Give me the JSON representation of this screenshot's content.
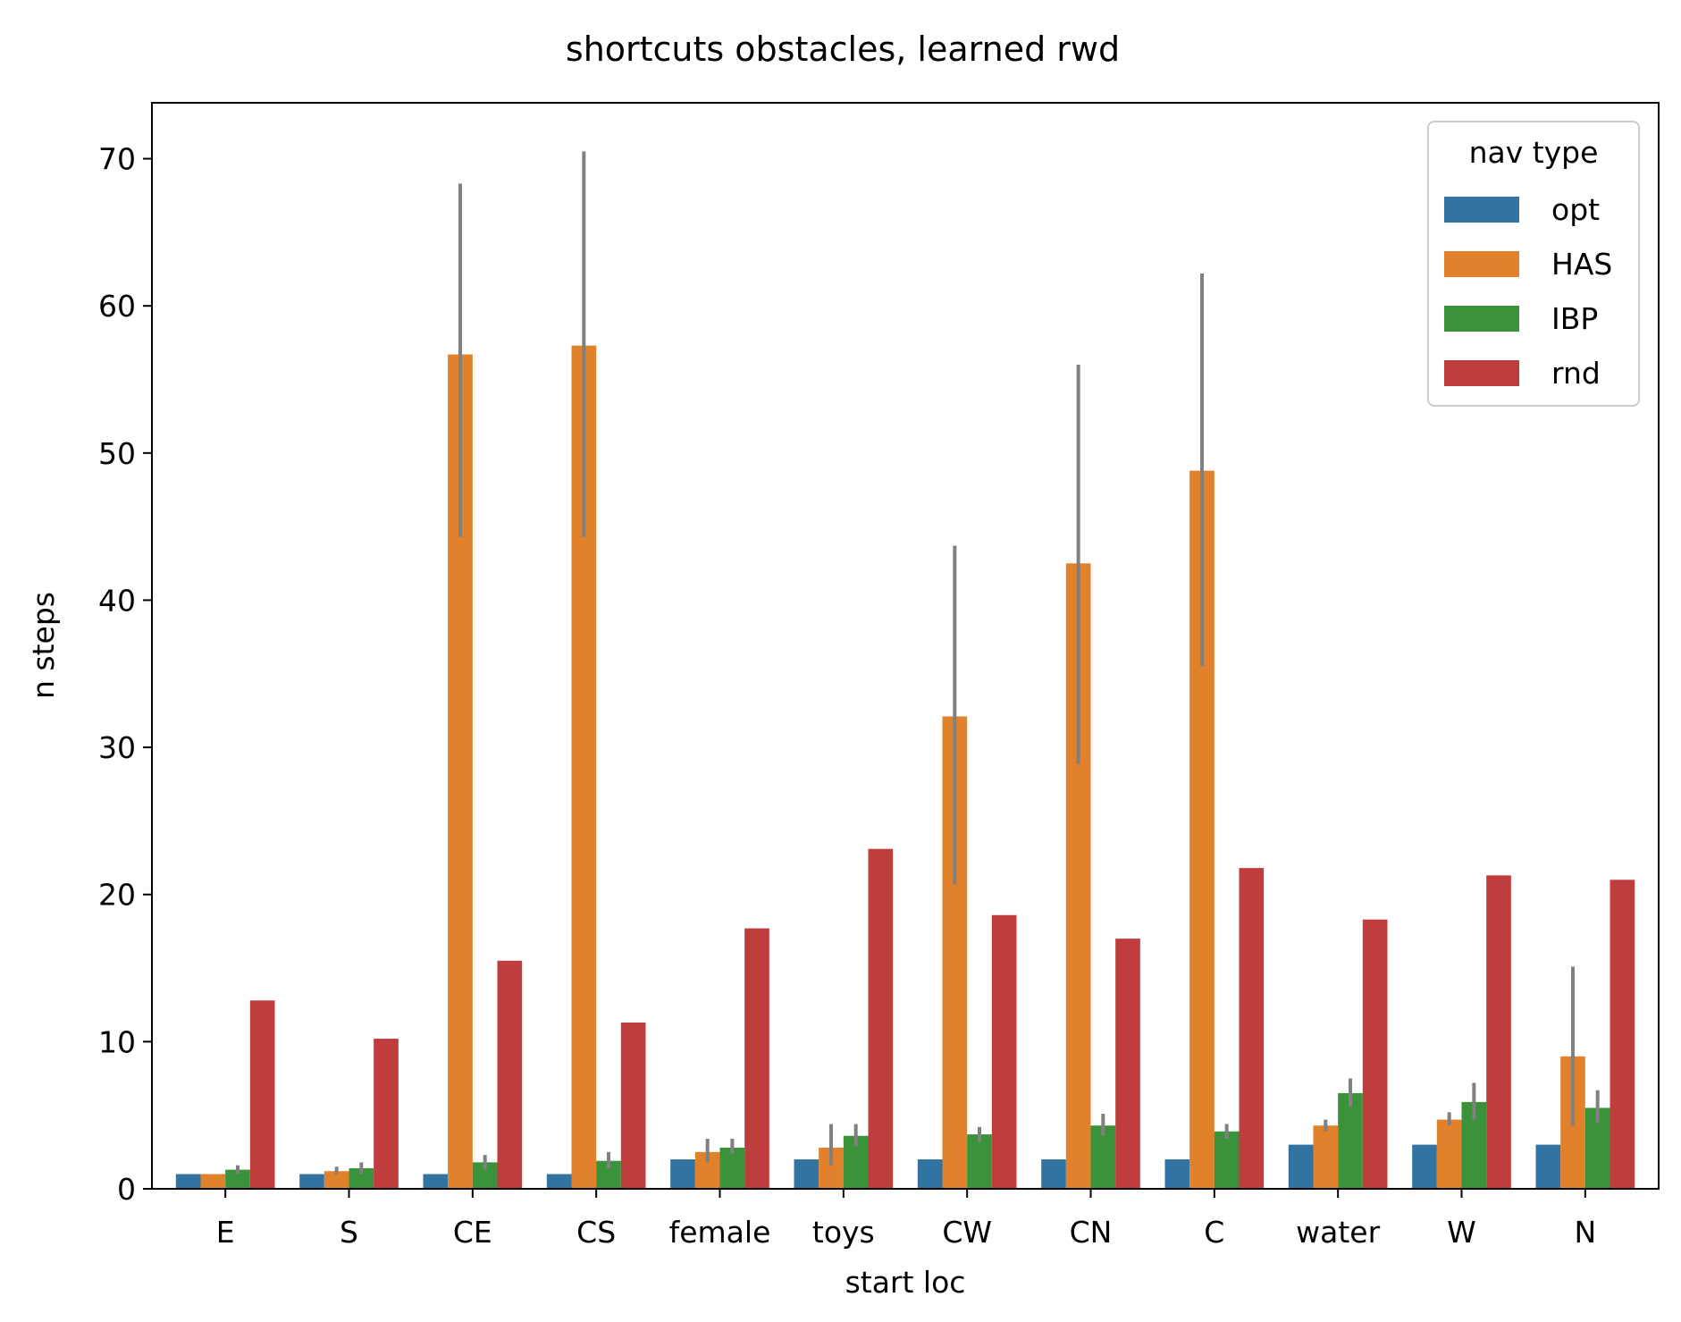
{
  "chart_data": {
    "type": "bar",
    "title": "shortcuts obstacles, learned rwd",
    "xlabel": "start loc",
    "ylabel": "n steps",
    "ylim": [
      0,
      73.8
    ],
    "yticks": [
      0,
      10,
      20,
      30,
      40,
      50,
      60,
      70
    ],
    "grid": false,
    "legend": {
      "title": "nav type",
      "position": "top-right"
    },
    "error_bar_color": "#808080",
    "categories": [
      "E",
      "S",
      "CE",
      "CS",
      "female",
      "toys",
      "CW",
      "CN",
      "C",
      "water",
      "W",
      "N"
    ],
    "series": [
      {
        "name": "opt",
        "color": "#3274a1",
        "values": [
          1,
          1,
          1,
          1,
          2,
          2,
          2,
          2,
          2,
          3,
          3,
          3
        ],
        "errors": [
          null,
          null,
          null,
          null,
          null,
          null,
          null,
          null,
          null,
          null,
          null,
          null
        ]
      },
      {
        "name": "HAS",
        "color": "#e1812c",
        "values": [
          1,
          1.2,
          56.7,
          57.3,
          2.5,
          2.8,
          32.1,
          42.5,
          48.8,
          4.3,
          4.7,
          9.0
        ],
        "errors": [
          null,
          [
            1.0,
            1.5
          ],
          [
            44.3,
            68.3
          ],
          [
            44.3,
            70.5
          ],
          [
            1.8,
            3.4
          ],
          [
            1.6,
            4.4
          ],
          [
            20.7,
            43.7
          ],
          [
            28.9,
            56.0
          ],
          [
            35.5,
            62.2
          ],
          [
            3.9,
            4.7
          ],
          [
            4.3,
            5.2
          ],
          [
            4.3,
            15.1
          ]
        ]
      },
      {
        "name": "IBP",
        "color": "#3a923a",
        "values": [
          1.3,
          1.4,
          1.8,
          1.9,
          2.8,
          3.6,
          3.7,
          4.3,
          3.9,
          6.5,
          5.9,
          5.5
        ],
        "errors": [
          [
            1.0,
            1.6
          ],
          [
            1.0,
            1.8
          ],
          [
            1.3,
            2.3
          ],
          [
            1.4,
            2.5
          ],
          [
            2.4,
            3.4
          ],
          [
            2.9,
            4.4
          ],
          [
            3.2,
            4.2
          ],
          [
            3.6,
            5.1
          ],
          [
            3.4,
            4.4
          ],
          [
            5.6,
            7.5
          ],
          [
            4.7,
            7.2
          ],
          [
            4.5,
            6.7
          ]
        ]
      },
      {
        "name": "rnd",
        "color": "#c03d3e",
        "values": [
          12.8,
          10.2,
          15.5,
          11.3,
          17.7,
          23.1,
          18.6,
          17.0,
          21.8,
          18.3,
          21.3,
          21.0
        ],
        "errors": [
          null,
          null,
          null,
          null,
          null,
          null,
          null,
          null,
          null,
          null,
          null,
          null
        ]
      }
    ]
  }
}
